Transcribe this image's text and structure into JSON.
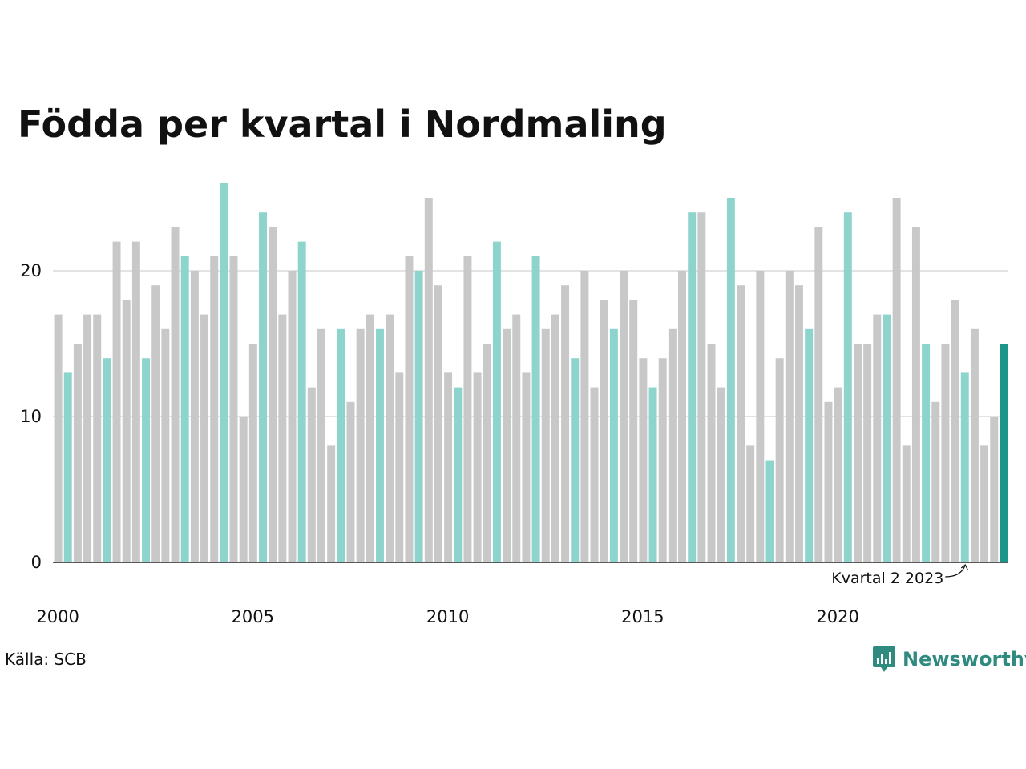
{
  "title": "Födda per kvartal i Nordmaling",
  "source": "Källa: SCB",
  "logo": {
    "text": "Newsworthy",
    "icon": "newsworthy-logo-icon"
  },
  "colors": {
    "default": "#c8c8c8",
    "highlight": "#8dd4cc",
    "latest": "#1c9688",
    "logo": "#2f8a7f"
  },
  "chart_data": {
    "type": "bar",
    "title": "Födda per kvartal i Nordmaling",
    "x_tick_labels": [
      "2000",
      "2005",
      "2010",
      "2015",
      "2020"
    ],
    "y_tick_labels": [
      "0",
      "10",
      "20"
    ],
    "ylim": [
      0,
      27
    ],
    "grid": true,
    "highlight": "second quarter of each year",
    "annotation": {
      "text": "Kvartal 2 2023"
    },
    "categories": [
      "2000 Q1",
      "2000 Q2",
      "2000 Q3",
      "2000 Q4",
      "2001 Q1",
      "2001 Q2",
      "2001 Q3",
      "2001 Q4",
      "2002 Q1",
      "2002 Q2",
      "2002 Q3",
      "2002 Q4",
      "2003 Q1",
      "2003 Q2",
      "2003 Q3",
      "2003 Q4",
      "2004 Q1",
      "2004 Q2",
      "2004 Q3",
      "2004 Q4",
      "2005 Q1",
      "2005 Q2",
      "2005 Q3",
      "2005 Q4",
      "2006 Q1",
      "2006 Q2",
      "2006 Q3",
      "2006 Q4",
      "2007 Q1",
      "2007 Q2",
      "2007 Q3",
      "2007 Q4",
      "2008 Q1",
      "2008 Q2",
      "2008 Q3",
      "2008 Q4",
      "2009 Q1",
      "2009 Q2",
      "2009 Q3",
      "2009 Q4",
      "2010 Q1",
      "2010 Q2",
      "2010 Q3",
      "2010 Q4",
      "2011 Q1",
      "2011 Q2",
      "2011 Q3",
      "2011 Q4",
      "2012 Q1",
      "2012 Q2",
      "2012 Q3",
      "2012 Q4",
      "2013 Q1",
      "2013 Q2",
      "2013 Q3",
      "2013 Q4",
      "2014 Q1",
      "2014 Q2",
      "2014 Q3",
      "2014 Q4",
      "2015 Q1",
      "2015 Q2",
      "2015 Q3",
      "2015 Q4",
      "2016 Q1",
      "2016 Q2",
      "2016 Q3",
      "2016 Q4",
      "2017 Q1",
      "2017 Q2",
      "2017 Q3",
      "2017 Q4",
      "2018 Q1",
      "2018 Q2",
      "2018 Q3",
      "2018 Q4",
      "2019 Q1",
      "2019 Q2",
      "2019 Q3",
      "2019 Q4",
      "2020 Q1",
      "2020 Q2",
      "2020 Q3",
      "2020 Q4",
      "2021 Q1",
      "2021 Q2",
      "2021 Q3",
      "2021 Q4",
      "2022 Q1",
      "2022 Q2",
      "2022 Q3",
      "2022 Q4",
      "2023 Q1",
      "2023 Q2",
      "2023 Q3",
      "2023 Q4",
      "2024 Q1",
      "2024 Q2"
    ],
    "values": [
      17,
      13,
      15,
      17,
      17,
      14,
      22,
      18,
      22,
      14,
      19,
      16,
      23,
      21,
      20,
      17,
      21,
      26,
      21,
      10,
      15,
      24,
      23,
      17,
      20,
      22,
      12,
      16,
      8,
      16,
      11,
      16,
      17,
      16,
      17,
      13,
      21,
      20,
      25,
      19,
      13,
      12,
      21,
      13,
      15,
      22,
      16,
      17,
      13,
      21,
      16,
      17,
      19,
      14,
      20,
      12,
      18,
      16,
      20,
      18,
      14,
      12,
      14,
      16,
      20,
      24,
      24,
      15,
      12,
      25,
      19,
      8,
      20,
      7,
      14,
      20,
      19,
      16,
      23,
      11,
      12,
      24,
      15,
      15,
      17,
      17,
      25,
      8,
      23,
      15,
      11,
      15,
      18,
      13,
      16,
      8,
      10,
      15
    ]
  }
}
